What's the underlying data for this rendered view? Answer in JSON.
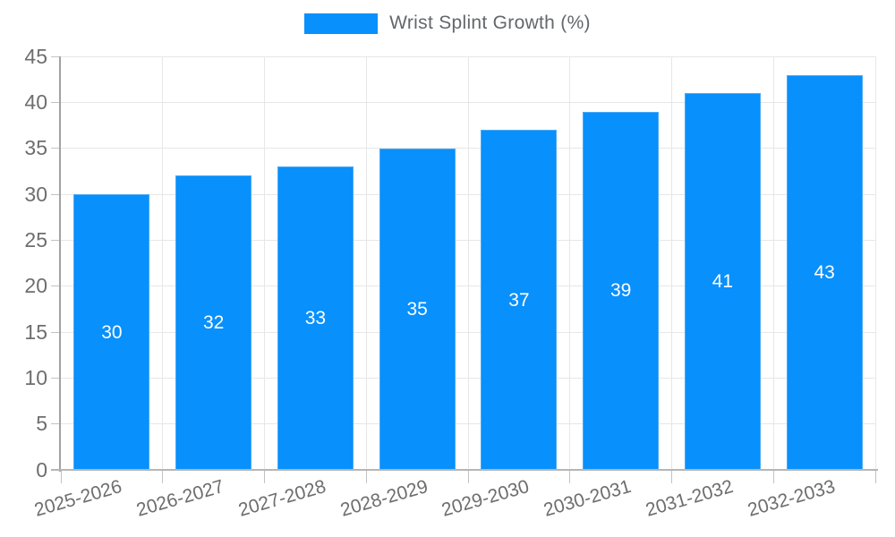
{
  "legend": {
    "label": "Wrist Splint Growth (%)"
  },
  "colors": {
    "bar": "#0890fc",
    "bar_border": "#49aaf7",
    "grid": "#e7e7e7",
    "axis": "#a2a2a2",
    "tick": "#c2c2c2",
    "tick_label": "#6e6e6e",
    "value_label": "#ffffff",
    "legend_text": "#63676b",
    "background": "#ffffff"
  },
  "chart_data": {
    "type": "bar",
    "title": "Wrist Splint Growth (%)",
    "categories": [
      "2025-2026",
      "2026-2027",
      "2027-2028",
      "2028-2029",
      "2029-2030",
      "2030-2031",
      "2031-2032",
      "2032-2033"
    ],
    "values": [
      30,
      32,
      33,
      35,
      37,
      39,
      41,
      43
    ],
    "xlabel": "",
    "ylabel": "",
    "ylim": [
      0,
      45
    ],
    "ytick_step": 5,
    "ytick_labels": [
      "0",
      "5",
      "10",
      "15",
      "20",
      "25",
      "30",
      "35",
      "40",
      "45"
    ],
    "grid": true,
    "legend_position": "top",
    "bar_value_labels": true,
    "x_label_rotation_deg": -16
  }
}
